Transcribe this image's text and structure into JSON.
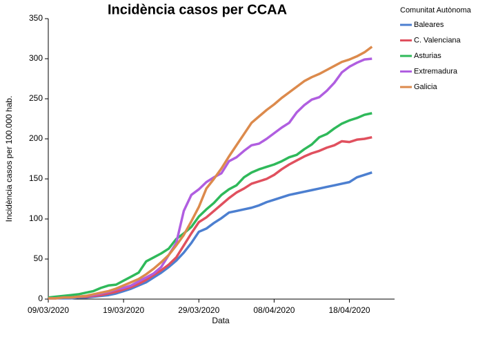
{
  "chart_data": {
    "type": "line",
    "title": "Incidència casos per CCAA",
    "x_label": "Data",
    "y_label": "Incidència casos per 100.000 hab.",
    "legend_title": "Comunitat Autònoma",
    "legend": "right",
    "x": [
      "09/03/2020",
      "10/03/2020",
      "11/03/2020",
      "12/03/2020",
      "13/03/2020",
      "14/03/2020",
      "15/03/2020",
      "16/03/2020",
      "17/03/2020",
      "18/03/2020",
      "19/03/2020",
      "20/03/2020",
      "21/03/2020",
      "22/03/2020",
      "23/03/2020",
      "24/03/2020",
      "25/03/2020",
      "26/03/2020",
      "27/03/2020",
      "28/03/2020",
      "29/03/2020",
      "30/03/2020",
      "31/03/2020",
      "01/04/2020",
      "02/04/2020",
      "03/04/2020",
      "04/04/2020",
      "05/04/2020",
      "06/04/2020",
      "07/04/2020",
      "08/04/2020",
      "09/04/2020",
      "10/04/2020",
      "11/04/2020",
      "12/04/2020",
      "13/04/2020",
      "14/04/2020",
      "15/04/2020",
      "16/04/2020",
      "17/04/2020",
      "18/04/2020",
      "19/04/2020",
      "20/04/2020",
      "21/04/2020"
    ],
    "series": [
      {
        "name": "Baleares",
        "color": "#4c7fd0",
        "values": [
          1,
          1,
          1,
          1,
          2,
          2,
          3,
          4,
          5,
          7,
          10,
          13,
          17,
          21,
          27,
          33,
          40,
          48,
          58,
          70,
          84,
          88,
          95,
          101,
          108,
          110,
          112,
          114,
          117,
          121,
          124,
          127,
          130,
          132,
          134,
          136,
          138,
          140,
          142,
          144,
          146,
          152,
          155,
          158
        ]
      },
      {
        "name": "C. Valenciana",
        "color": "#e0505e",
        "values": [
          1,
          1,
          2,
          2,
          3,
          3,
          4,
          5,
          7,
          9,
          12,
          15,
          19,
          24,
          30,
          36,
          43,
          52,
          67,
          82,
          96,
          102,
          110,
          118,
          126,
          133,
          138,
          144,
          147,
          150,
          155,
          162,
          168,
          173,
          178,
          182,
          185,
          189,
          192,
          197,
          196,
          199,
          200,
          202
        ]
      },
      {
        "name": "Asturias",
        "color": "#2fb95a",
        "values": [
          2,
          3,
          4,
          5,
          6,
          8,
          10,
          14,
          17,
          18,
          23,
          28,
          33,
          47,
          52,
          57,
          63,
          75,
          82,
          90,
          103,
          112,
          120,
          130,
          137,
          142,
          152,
          158,
          162,
          165,
          168,
          172,
          177,
          180,
          187,
          193,
          202,
          206,
          213,
          219,
          223,
          226,
          230,
          232
        ]
      },
      {
        "name": "Extremadura",
        "color": "#b05ee0",
        "values": [
          1,
          1,
          2,
          2,
          3,
          4,
          5,
          7,
          9,
          12,
          14,
          17,
          22,
          27,
          32,
          40,
          55,
          70,
          110,
          130,
          137,
          146,
          152,
          157,
          172,
          177,
          185,
          192,
          194,
          200,
          207,
          214,
          220,
          233,
          242,
          249,
          252,
          260,
          270,
          283,
          290,
          295,
          299,
          300
        ]
      },
      {
        "name": "Galicia",
        "color": "#dc8a4c",
        "values": [
          1,
          1,
          2,
          2,
          3,
          4,
          6,
          8,
          10,
          13,
          17,
          21,
          25,
          31,
          38,
          46,
          55,
          67,
          80,
          97,
          115,
          138,
          150,
          163,
          178,
          192,
          206,
          220,
          228,
          236,
          243,
          251,
          258,
          265,
          272,
          277,
          281,
          286,
          291,
          296,
          299,
          303,
          308,
          315
        ]
      }
    ],
    "xlim": [
      "09/03/2020",
      "24/04/2020"
    ],
    "xticks": [
      "09/03/2020",
      "19/03/2020",
      "29/03/2020",
      "08/04/2020",
      "18/04/2020"
    ],
    "ylim": [
      0,
      350
    ],
    "yticks": [
      0,
      50,
      100,
      150,
      200,
      250,
      300,
      350
    ]
  }
}
